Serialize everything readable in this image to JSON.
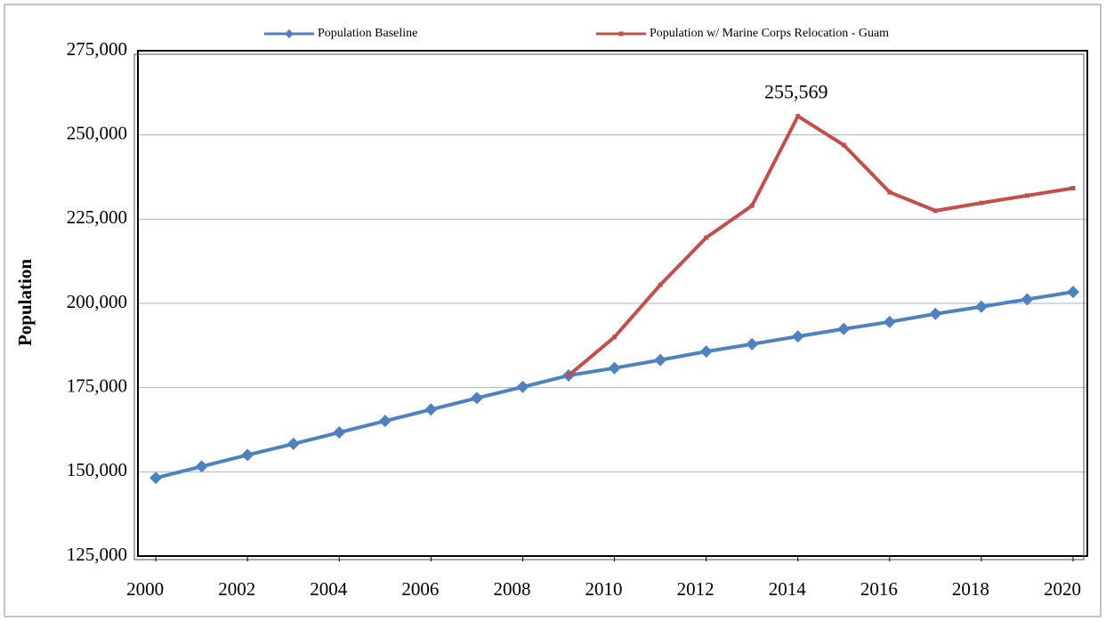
{
  "chart_data": {
    "type": "line",
    "y_label": "Population",
    "x": [
      2000,
      2001,
      2002,
      2003,
      2004,
      2005,
      2006,
      2007,
      2008,
      2009,
      2010,
      2011,
      2012,
      2013,
      2014,
      2015,
      2016,
      2017,
      2018,
      2019,
      2020
    ],
    "series": [
      {
        "name": "Population Baseline",
        "color": "#4f81bd",
        "marker": "diamond",
        "values": [
          148200,
          151600,
          155000,
          158300,
          161700,
          165100,
          168500,
          171900,
          175200,
          178600,
          180800,
          183200,
          185700,
          187900,
          190200,
          192400,
          194500,
          196900,
          199000,
          201200,
          203400
        ]
      },
      {
        "name": "Population w/ Marine Corps Relocation - Guam",
        "color": "#c0504d",
        "marker": "square",
        "values": [
          null,
          null,
          null,
          null,
          null,
          null,
          null,
          null,
          null,
          178600,
          190000,
          205500,
          219500,
          229000,
          255569,
          247000,
          233000,
          227500,
          229800,
          232000,
          234200
        ],
        "value_labels": [
          null,
          null,
          null,
          null,
          null,
          null,
          null,
          null,
          null,
          null,
          null,
          null,
          null,
          null,
          "255,569",
          null,
          null,
          null,
          null,
          null,
          null
        ]
      }
    ],
    "xlim": [
      1999.61,
      2020.31
    ],
    "xticks": [
      2000,
      2002,
      2004,
      2006,
      2008,
      2010,
      2012,
      2014,
      2016,
      2018,
      2020
    ],
    "ylim": [
      125000,
      275000
    ],
    "yticks": [
      {
        "value": 125000,
        "label": "125,000"
      },
      {
        "value": 150000,
        "label": "150,000"
      },
      {
        "value": 175000,
        "label": "175,000"
      },
      {
        "value": 200000,
        "label": "200,000"
      },
      {
        "value": 225000,
        "label": "225,000"
      },
      {
        "value": 250000,
        "label": "250,000"
      },
      {
        "value": 275000,
        "label": "275,000"
      }
    ],
    "grid": true,
    "legend": "top"
  }
}
